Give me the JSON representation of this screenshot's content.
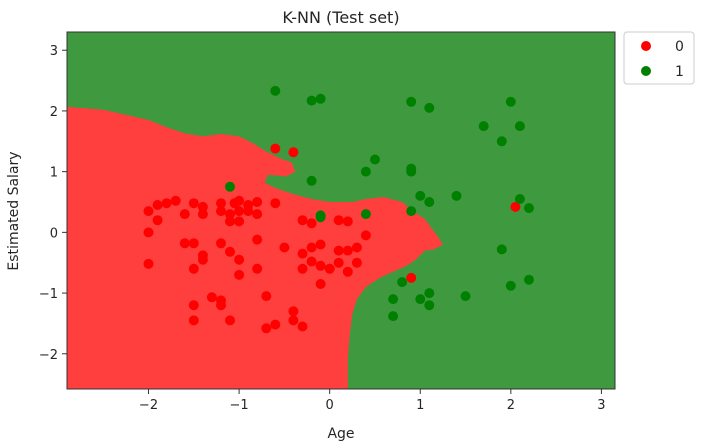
{
  "chart_data": {
    "type": "scatter",
    "title": "K-NN (Test set)",
    "xlabel": "Age",
    "ylabel": "Estimated Salary",
    "xlim": [
      -2.9,
      3.15
    ],
    "ylim": [
      -2.58,
      3.3
    ],
    "x_ticks": [
      -2,
      -1,
      0,
      1,
      2,
      3
    ],
    "y_ticks": [
      -2,
      -1,
      0,
      1,
      2,
      3
    ],
    "x_tick_labels": [
      "−2",
      "−1",
      "0",
      "1",
      "2",
      "3"
    ],
    "y_tick_labels": [
      "−2",
      "−1",
      "0",
      "1",
      "2",
      "3"
    ],
    "grid": false,
    "legend_position": "outside-top-right",
    "background_regions": [
      {
        "class": "1",
        "color": "#3f9a3f"
      },
      {
        "class": "0",
        "color": "#ff3e3e",
        "boundary": [
          [
            -2.9,
            2.07
          ],
          [
            -2.5,
            2.02
          ],
          [
            -2.2,
            1.92
          ],
          [
            -2.0,
            1.85
          ],
          [
            -1.8,
            1.73
          ],
          [
            -1.6,
            1.63
          ],
          [
            -1.4,
            1.58
          ],
          [
            -1.2,
            1.62
          ],
          [
            -1.0,
            1.58
          ],
          [
            -0.85,
            1.47
          ],
          [
            -0.7,
            1.33
          ],
          [
            -0.55,
            1.22
          ],
          [
            -0.42,
            1.15
          ],
          [
            -0.38,
            1.0
          ],
          [
            -0.48,
            0.92
          ],
          [
            -0.68,
            0.95
          ],
          [
            -0.72,
            0.82
          ],
          [
            -0.6,
            0.73
          ],
          [
            -0.4,
            0.63
          ],
          [
            -0.2,
            0.55
          ],
          [
            0.0,
            0.5
          ],
          [
            0.25,
            0.5
          ],
          [
            0.4,
            0.55
          ],
          [
            0.6,
            0.58
          ],
          [
            0.8,
            0.5
          ],
          [
            0.92,
            0.35
          ],
          [
            1.05,
            0.22
          ],
          [
            1.12,
            0.08
          ],
          [
            1.2,
            -0.08
          ],
          [
            1.25,
            -0.2
          ],
          [
            1.15,
            -0.28
          ],
          [
            1.05,
            -0.3
          ],
          [
            0.95,
            -0.45
          ],
          [
            0.85,
            -0.55
          ],
          [
            0.7,
            -0.65
          ],
          [
            0.55,
            -0.75
          ],
          [
            0.4,
            -0.9
          ],
          [
            0.3,
            -1.1
          ],
          [
            0.25,
            -1.35
          ],
          [
            0.22,
            -1.7
          ],
          [
            0.2,
            -2.1
          ],
          [
            0.2,
            -2.58
          ],
          [
            -2.9,
            -2.58
          ]
        ]
      }
    ],
    "series": [
      {
        "name": "0",
        "color": "#ff0000",
        "points": [
          [
            -2.0,
            0.35
          ],
          [
            -2.0,
            0.0
          ],
          [
            -2.0,
            -0.52
          ],
          [
            -1.9,
            0.45
          ],
          [
            -1.9,
            0.2
          ],
          [
            -1.8,
            0.48
          ],
          [
            -1.7,
            0.52
          ],
          [
            -1.6,
            0.3
          ],
          [
            -1.6,
            -0.18
          ],
          [
            -1.5,
            0.48
          ],
          [
            -1.5,
            -0.18
          ],
          [
            -1.5,
            -0.6
          ],
          [
            -1.5,
            -1.2
          ],
          [
            -1.5,
            -1.45
          ],
          [
            -1.4,
            0.42
          ],
          [
            -1.4,
            0.3
          ],
          [
            -1.4,
            -0.38
          ],
          [
            -1.4,
            -0.45
          ],
          [
            -1.3,
            -1.07
          ],
          [
            -1.2,
            0.48
          ],
          [
            -1.2,
            0.35
          ],
          [
            -1.2,
            -0.18
          ],
          [
            -1.2,
            -1.12
          ],
          [
            -1.2,
            -1.2
          ],
          [
            -1.1,
            0.3
          ],
          [
            -1.1,
            0.18
          ],
          [
            -1.1,
            -0.32
          ],
          [
            -1.1,
            -1.45
          ],
          [
            -1.05,
            0.48
          ],
          [
            -1.0,
            0.52
          ],
          [
            -1.0,
            0.35
          ],
          [
            -1.0,
            0.18
          ],
          [
            -1.0,
            -0.45
          ],
          [
            -1.0,
            -0.7
          ],
          [
            -0.9,
            0.45
          ],
          [
            -0.9,
            0.35
          ],
          [
            -0.8,
            0.3
          ],
          [
            -0.8,
            0.5
          ],
          [
            -0.8,
            -0.12
          ],
          [
            -0.8,
            -0.6
          ],
          [
            -0.7,
            -1.05
          ],
          [
            -0.7,
            -1.58
          ],
          [
            -0.6,
            1.38
          ],
          [
            -0.6,
            0.48
          ],
          [
            -0.6,
            -1.52
          ],
          [
            -0.5,
            -0.25
          ],
          [
            -0.4,
            1.32
          ],
          [
            -0.4,
            -1.3
          ],
          [
            -0.4,
            -1.45
          ],
          [
            -0.3,
            0.2
          ],
          [
            -0.3,
            -0.35
          ],
          [
            -0.3,
            -0.6
          ],
          [
            -0.3,
            -1.55
          ],
          [
            -0.2,
            0.15
          ],
          [
            -0.2,
            -0.25
          ],
          [
            -0.2,
            -0.48
          ],
          [
            -0.1,
            -0.2
          ],
          [
            -0.1,
            -0.55
          ],
          [
            -0.1,
            -0.85
          ],
          [
            0.0,
            -0.6
          ],
          [
            0.1,
            0.2
          ],
          [
            0.1,
            -0.3
          ],
          [
            0.1,
            -0.5
          ],
          [
            0.2,
            0.18
          ],
          [
            0.2,
            -0.3
          ],
          [
            0.2,
            -0.65
          ],
          [
            0.3,
            -0.25
          ],
          [
            0.3,
            -0.5
          ],
          [
            0.4,
            -0.05
          ],
          [
            0.9,
            -0.75
          ],
          [
            2.05,
            0.42
          ]
        ]
      },
      {
        "name": "1",
        "color": "#008000",
        "points": [
          [
            -1.1,
            0.75
          ],
          [
            -0.6,
            2.33
          ],
          [
            -0.2,
            2.17
          ],
          [
            -0.1,
            2.2
          ],
          [
            -0.2,
            0.85
          ],
          [
            -0.1,
            0.28
          ],
          [
            -0.1,
            0.25
          ],
          [
            0.4,
            0.3
          ],
          [
            0.4,
            1.0
          ],
          [
            0.5,
            1.2
          ],
          [
            0.7,
            -1.1
          ],
          [
            0.7,
            -1.38
          ],
          [
            0.8,
            -0.82
          ],
          [
            0.9,
            2.15
          ],
          [
            0.9,
            1.05
          ],
          [
            0.9,
            1.0
          ],
          [
            0.9,
            0.35
          ],
          [
            1.0,
            0.6
          ],
          [
            1.0,
            -1.1
          ],
          [
            1.1,
            2.05
          ],
          [
            1.1,
            0.5
          ],
          [
            1.1,
            -1.0
          ],
          [
            1.1,
            -1.2
          ],
          [
            1.4,
            0.6
          ],
          [
            1.5,
            -1.05
          ],
          [
            1.7,
            1.75
          ],
          [
            1.9,
            1.5
          ],
          [
            1.9,
            -0.28
          ],
          [
            2.0,
            2.15
          ],
          [
            2.0,
            -0.88
          ],
          [
            2.1,
            1.75
          ],
          [
            2.1,
            0.55
          ],
          [
            2.2,
            0.4
          ],
          [
            2.2,
            -0.78
          ]
        ]
      }
    ]
  }
}
